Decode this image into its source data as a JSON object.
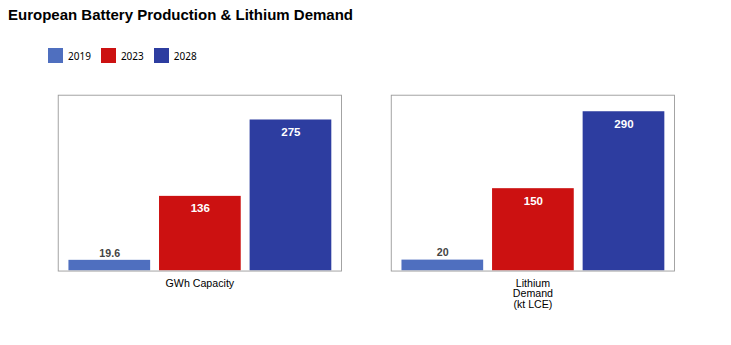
{
  "chart_data": {
    "type": "bar",
    "title": "European Battery Production & Lithium Demand",
    "categories": [
      "GWh Capacity",
      "Lithium\nDemand\n(kt LCE)"
    ],
    "series": [
      {
        "name": "2019",
        "color": "#4F6FBF",
        "values": [
          19.6,
          20
        ]
      },
      {
        "name": "2023",
        "color": "#CC1111",
        "values": [
          136,
          150
        ]
      },
      {
        "name": "2028",
        "color": "#2D3DA0",
        "values": [
          275,
          290
        ]
      }
    ],
    "ylim": [
      0,
      320
    ],
    "data_labels": true,
    "legend": "top",
    "tick_labels": "x",
    "grid": false
  }
}
